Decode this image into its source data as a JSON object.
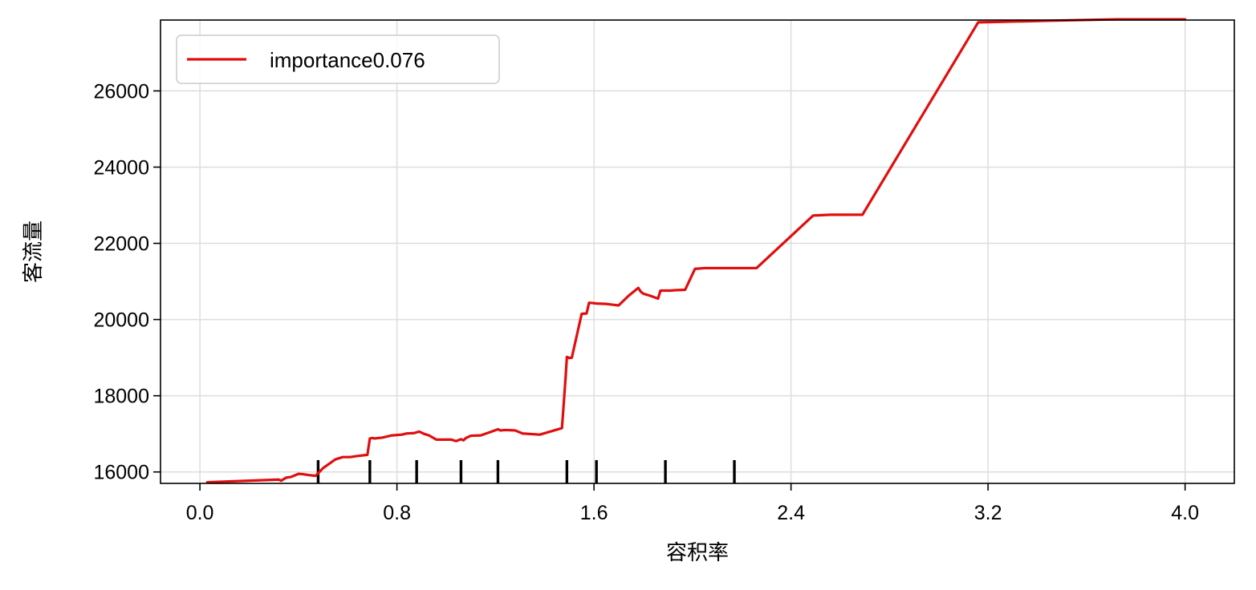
{
  "chart_data": {
    "type": "line",
    "xlabel": "容积率",
    "ylabel": "客流量",
    "xlim": [
      -0.16,
      4.2
    ],
    "ylim": [
      15700,
      27860
    ],
    "x_ticks": [
      0.0,
      0.8,
      1.6,
      2.4,
      3.2,
      4.0
    ],
    "x_tick_labels": [
      "0.0",
      "0.8",
      "1.6",
      "2.4",
      "3.2",
      "4.0"
    ],
    "y_ticks": [
      16000,
      18000,
      20000,
      22000,
      24000,
      26000
    ],
    "y_tick_labels": [
      "16000",
      "18000",
      "20000",
      "22000",
      "24000",
      "26000"
    ],
    "grid": true,
    "legend_position": "top-left",
    "line_color": "#e00e0e",
    "rug_color": "#000000",
    "series": [
      {
        "name": "importance0.076",
        "x": [
          0.03,
          0.32,
          0.33,
          0.35,
          0.37,
          0.4,
          0.42,
          0.44,
          0.47,
          0.5,
          0.55,
          0.58,
          0.61,
          0.64,
          0.68,
          0.69,
          0.7,
          0.71,
          0.74,
          0.78,
          0.82,
          0.84,
          0.87,
          0.89,
          0.91,
          0.93,
          0.96,
          0.99,
          1.02,
          1.04,
          1.06,
          1.07,
          1.08,
          1.1,
          1.14,
          1.18,
          1.21,
          1.22,
          1.24,
          1.28,
          1.31,
          1.38,
          1.47,
          1.485,
          1.49,
          1.5,
          1.51,
          1.55,
          1.57,
          1.58,
          1.6,
          1.61,
          1.65,
          1.7,
          1.74,
          1.78,
          1.79,
          1.8,
          1.83,
          1.86,
          1.87,
          1.91,
          1.93,
          1.97,
          2.01,
          2.05,
          2.08,
          2.13,
          2.26,
          2.49,
          2.56,
          2.69,
          3.16,
          3.44,
          3.72,
          4.0
        ],
        "y": [
          15730,
          15800,
          15770,
          15850,
          15870,
          15950,
          15940,
          15920,
          15900,
          16100,
          16330,
          16390,
          16390,
          16420,
          16450,
          16880,
          16890,
          16880,
          16900,
          16960,
          16980,
          17010,
          17020,
          17060,
          17000,
          16960,
          16850,
          16850,
          16850,
          16810,
          16860,
          16830,
          16890,
          16950,
          16960,
          17050,
          17120,
          17090,
          17100,
          17090,
          17010,
          16980,
          17150,
          18500,
          19020,
          18990,
          19000,
          20150,
          20160,
          20440,
          20430,
          20420,
          20410,
          20370,
          20620,
          20830,
          20730,
          20680,
          20620,
          20550,
          20760,
          20760,
          20770,
          20780,
          21330,
          21350,
          21350,
          21350,
          21350,
          22730,
          22750,
          22750,
          27800,
          27840,
          27880,
          27880
        ]
      }
    ],
    "rug_x": [
      0.48,
      0.69,
      0.88,
      1.06,
      1.21,
      1.49,
      1.61,
      1.89,
      2.17
    ]
  }
}
